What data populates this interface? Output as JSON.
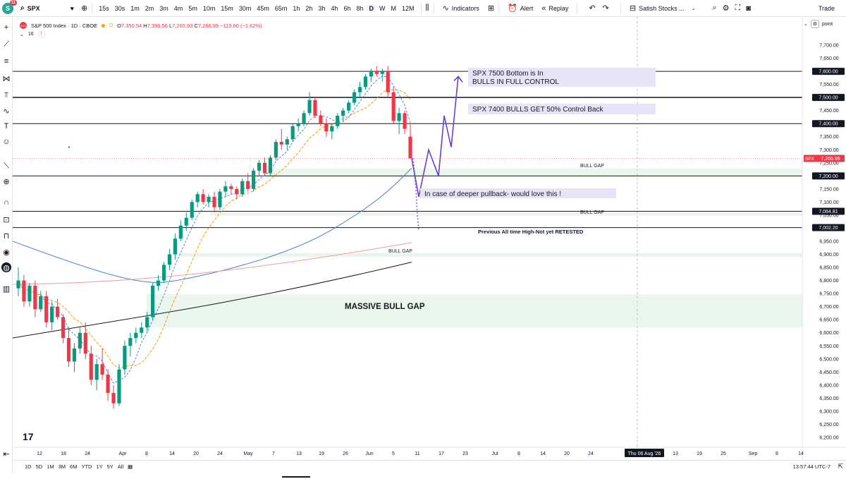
{
  "topbar": {
    "logo_badge": "11",
    "logo_letter": "S",
    "symbol": "SPX",
    "timeframes": [
      "15s",
      "30s",
      "1m",
      "2m",
      "3m",
      "4m",
      "5m",
      "10m",
      "15m",
      "30m",
      "45m",
      "65m",
      "1h",
      "2h",
      "3h",
      "4h",
      "6h",
      "8h",
      "D",
      "W",
      "M",
      "12M"
    ],
    "active_timeframe": "D",
    "indicators_label": "Indicators",
    "alert_label": "Alert",
    "replay_label": "Replay",
    "layout_label": "Satish Stocks ...",
    "trade_label": "Trade"
  },
  "header": {
    "index_badge": "500",
    "title": "S&P 500 Index · 1D · CBOE",
    "status_letter": "D",
    "open_label": "O",
    "open": "7,350.54",
    "high_label": "H",
    "high": "7,396.56",
    "low_label": "L",
    "low": "7,265.93",
    "close_label": "C",
    "close": "7,266.99",
    "change": "−119.66 (−1.62%)",
    "indicator_count": "16",
    "indicator_box": "!"
  },
  "price_scale": {
    "unit": "point",
    "ticks": [
      "7,700.00",
      "7,650.00",
      "7,600.00",
      "7,550.00",
      "7,500.00",
      "7,450.00",
      "7,400.00",
      "7,350.00",
      "7,300.00",
      "7,250.00",
      "7,200.00",
      "7,150.00",
      "7,100.00",
      "7,050.00",
      "7,000.00",
      "6,950.00",
      "6,900.00",
      "6,850.00",
      "6,800.00",
      "6,750.00",
      "6,700.00",
      "6,650.00",
      "6,600.00",
      "6,550.00",
      "6,500.00",
      "6,450.00",
      "6,400.00",
      "6,350.00",
      "6,300.00",
      "6,250.00",
      "6,200.00"
    ],
    "tick_values": [
      7700,
      7650,
      7600,
      7550,
      7500,
      7450,
      7400,
      7350,
      7300,
      7250,
      7200,
      7150,
      7100,
      7050,
      7000,
      6950,
      6900,
      6850,
      6800,
      6750,
      6700,
      6650,
      6600,
      6550,
      6500,
      6450,
      6400,
      6350,
      6300,
      6250,
      6200
    ],
    "levels": [
      {
        "price": 7600,
        "label": "7,600.00"
      },
      {
        "price": 7500,
        "label": "7,500.00"
      },
      {
        "price": 7400,
        "label": "7,400.00"
      },
      {
        "price": 7200,
        "label": "7,200.00"
      },
      {
        "price": 7064.81,
        "label": "7,064.81"
      },
      {
        "price": 7002.2,
        "label": "7,002.20"
      }
    ],
    "last_price_tag": "SPX",
    "last_price": "7,266.99",
    "last_price_value": 7266.99
  },
  "time_axis": {
    "labels": [
      "12",
      "18",
      "24",
      "Apr",
      "8",
      "14",
      "20",
      "24",
      "May",
      "7",
      "13",
      "19",
      "26",
      "Jun",
      "5",
      "11",
      "17",
      "23",
      "Jul",
      "8",
      "14",
      "20",
      "24",
      "13",
      "19",
      "25",
      "Sep",
      "8",
      "14"
    ],
    "crosshair_label": "Thu 06 Aug '26"
  },
  "annotations": {
    "spx7500_line1": "SPX 7500 Bottom is In",
    "spx7500_line2": "BULLS IN FULL CONTROL",
    "spx7400": "SPX 7400 BULLS GET 50% Control Back",
    "bull_gap_1": "BULL GAP",
    "pullback": "In case of deeper pullback- would love this !",
    "bull_gap_2": "BULL GAP",
    "ath": "Previous All time High-Not yet RETESTED",
    "bull_gap_3": "BULL GAP",
    "massive_gap": "MASSIVE BULL GAP"
  },
  "gaps": [
    {
      "top": 7228,
      "bottom": 7197
    },
    {
      "top": 7060,
      "bottom": 7048
    },
    {
      "top": 6905,
      "bottom": 6890
    },
    {
      "top": 6748,
      "bottom": 6620
    }
  ],
  "chart_data": {
    "type": "candlestick",
    "ylim": [
      6180,
      7720
    ],
    "candles": [
      [
        6770,
        6850,
        6740,
        6800
      ],
      [
        6800,
        6820,
        6700,
        6720
      ],
      [
        6720,
        6790,
        6700,
        6780
      ],
      [
        6780,
        6800,
        6660,
        6690
      ],
      [
        6690,
        6760,
        6680,
        6740
      ],
      [
        6740,
        6760,
        6620,
        6640
      ],
      [
        6640,
        6720,
        6610,
        6700
      ],
      [
        6700,
        6730,
        6650,
        6660
      ],
      [
        6660,
        6670,
        6560,
        6580
      ],
      [
        6580,
        6620,
        6470,
        6490
      ],
      [
        6490,
        6560,
        6450,
        6540
      ],
      [
        6540,
        6620,
        6520,
        6600
      ],
      [
        6600,
        6640,
        6500,
        6520
      ],
      [
        6520,
        6550,
        6400,
        6420
      ],
      [
        6420,
        6500,
        6380,
        6480
      ],
      [
        6480,
        6540,
        6420,
        6440
      ],
      [
        6440,
        6460,
        6340,
        6370
      ],
      [
        6370,
        6400,
        6310,
        6330
      ],
      [
        6330,
        6480,
        6320,
        6460
      ],
      [
        6460,
        6570,
        6440,
        6550
      ],
      [
        6550,
        6600,
        6510,
        6580
      ],
      [
        6580,
        6620,
        6560,
        6600
      ],
      [
        6600,
        6640,
        6580,
        6620
      ],
      [
        6620,
        6680,
        6600,
        6660
      ],
      [
        6660,
        6790,
        6650,
        6780
      ],
      [
        6780,
        6820,
        6760,
        6800
      ],
      [
        6800,
        6870,
        6790,
        6860
      ],
      [
        6860,
        6920,
        6840,
        6900
      ],
      [
        6900,
        6980,
        6880,
        6960
      ],
      [
        6960,
        7030,
        6950,
        7010
      ],
      [
        7010,
        7060,
        6990,
        7040
      ],
      [
        7040,
        7110,
        7030,
        7100
      ],
      [
        7100,
        7140,
        7080,
        7130
      ],
      [
        7130,
        7150,
        7090,
        7100
      ],
      [
        7100,
        7130,
        7080,
        7120
      ],
      [
        7120,
        7140,
        7060,
        7080
      ],
      [
        7080,
        7150,
        7070,
        7140
      ],
      [
        7140,
        7180,
        7120,
        7160
      ],
      [
        7160,
        7170,
        7130,
        7150
      ],
      [
        7150,
        7160,
        7110,
        7130
      ],
      [
        7130,
        7190,
        7120,
        7180
      ],
      [
        7180,
        7210,
        7140,
        7150
      ],
      [
        7150,
        7230,
        7140,
        7220
      ],
      [
        7220,
        7260,
        7200,
        7250
      ],
      [
        7250,
        7270,
        7200,
        7210
      ],
      [
        7210,
        7280,
        7200,
        7270
      ],
      [
        7270,
        7340,
        7260,
        7330
      ],
      [
        7330,
        7380,
        7300,
        7320
      ],
      [
        7320,
        7350,
        7300,
        7340
      ],
      [
        7340,
        7400,
        7330,
        7390
      ],
      [
        7390,
        7420,
        7370,
        7400
      ],
      [
        7400,
        7450,
        7390,
        7440
      ],
      [
        7440,
        7520,
        7430,
        7490
      ],
      [
        7490,
        7500,
        7420,
        7430
      ],
      [
        7430,
        7450,
        7390,
        7400
      ],
      [
        7400,
        7420,
        7350,
        7370
      ],
      [
        7370,
        7400,
        7340,
        7390
      ],
      [
        7390,
        7440,
        7380,
        7430
      ],
      [
        7430,
        7460,
        7410,
        7450
      ],
      [
        7450,
        7490,
        7440,
        7480
      ],
      [
        7480,
        7530,
        7470,
        7520
      ],
      [
        7520,
        7560,
        7500,
        7540
      ],
      [
        7540,
        7590,
        7530,
        7580
      ],
      [
        7580,
        7610,
        7560,
        7600
      ],
      [
        7600,
        7620,
        7580,
        7590
      ],
      [
        7590,
        7610,
        7560,
        7600
      ],
      [
        7600,
        7620,
        7500,
        7520
      ],
      [
        7520,
        7540,
        7400,
        7410
      ],
      [
        7410,
        7460,
        7360,
        7440
      ],
      [
        7440,
        7450,
        7360,
        7380
      ],
      [
        7350,
        7396,
        7266,
        7267
      ]
    ],
    "bull_path": [
      [
        7267,
        "start"
      ],
      [
        7120
      ],
      [
        7300
      ],
      [
        7200
      ],
      [
        7430
      ],
      [
        7310
      ],
      [
        7580
      ]
    ],
    "pullback_path": [
      7267,
      7150,
      7050,
      6990
    ]
  }
}
